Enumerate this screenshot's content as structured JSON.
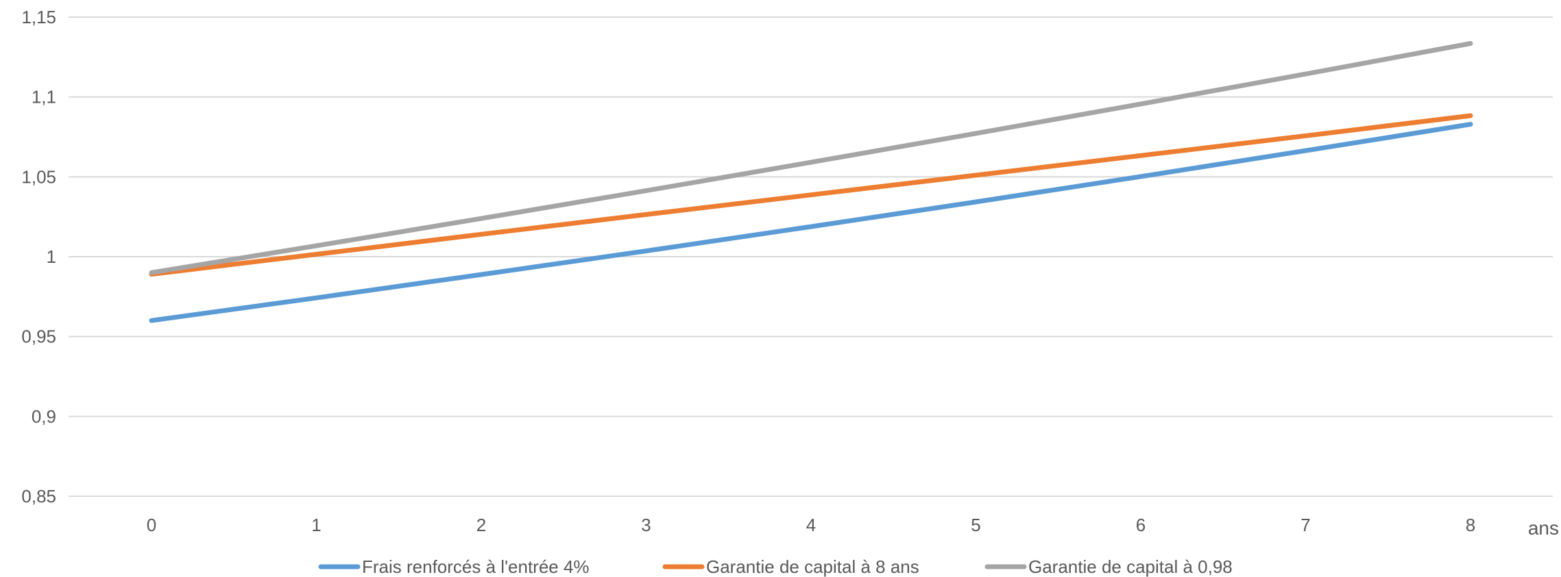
{
  "chart_data": {
    "type": "line",
    "title": "",
    "xlabel": "ans",
    "ylabel": "",
    "x": [
      0,
      1,
      2,
      3,
      4,
      5,
      6,
      7,
      8
    ],
    "x_tick_labels": [
      "0",
      "1",
      "2",
      "3",
      "4",
      "5",
      "6",
      "7",
      "8"
    ],
    "ylim": [
      0.85,
      1.15
    ],
    "y_ticks": [
      0.85,
      0.9,
      0.95,
      1,
      1.05,
      1.1,
      1.15
    ],
    "y_tick_labels": [
      "0,85",
      "0,9",
      "0,95",
      "1",
      "1,05",
      "1,1",
      "1,15"
    ],
    "grid": "horizontal",
    "legend_position": "bottom",
    "series": [
      {
        "name": "Frais renforcés à l'entrée 4%",
        "color": "#5B9BD5",
        "values": [
          0.96,
          0.9742,
          0.9888,
          1.0036,
          1.0188,
          1.0343,
          1.0502,
          1.0664,
          1.0829
        ]
      },
      {
        "name": "Garantie de capital à 8 ans",
        "color": "#ED7D31",
        "values": [
          0.989,
          1.0015,
          1.014,
          1.0264,
          1.0387,
          1.051,
          1.0633,
          1.0757,
          1.0883
        ]
      },
      {
        "name": "Garantie de capital à 0,98",
        "color": "#A5A5A5",
        "values": [
          0.99,
          1.0068,
          1.0239,
          1.0413,
          1.0591,
          1.0772,
          1.0956,
          1.1144,
          1.1335
        ]
      }
    ]
  }
}
